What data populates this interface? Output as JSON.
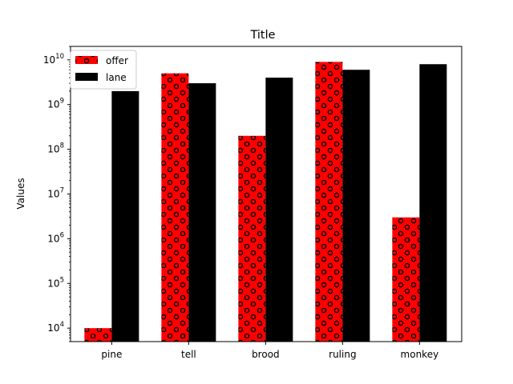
{
  "chart_data": {
    "type": "bar",
    "title": "Title",
    "xlabel": "",
    "ylabel": "Values",
    "yscale": "log",
    "ylim": [
      5000,
      20000000000
    ],
    "categories": [
      "pine",
      "tell",
      "brood",
      "ruling",
      "monkey"
    ],
    "series": [
      {
        "name": "offer",
        "values": [
          10000,
          5000000000,
          200000000,
          9000000000,
          3000000
        ],
        "color": "#ff0000",
        "hatch": "circles"
      },
      {
        "name": "lane",
        "values": [
          2000000000,
          3000000000,
          4000000000,
          6000000000,
          8000000000
        ],
        "color": "#000000"
      }
    ],
    "legend": "top-left",
    "grid": false
  }
}
